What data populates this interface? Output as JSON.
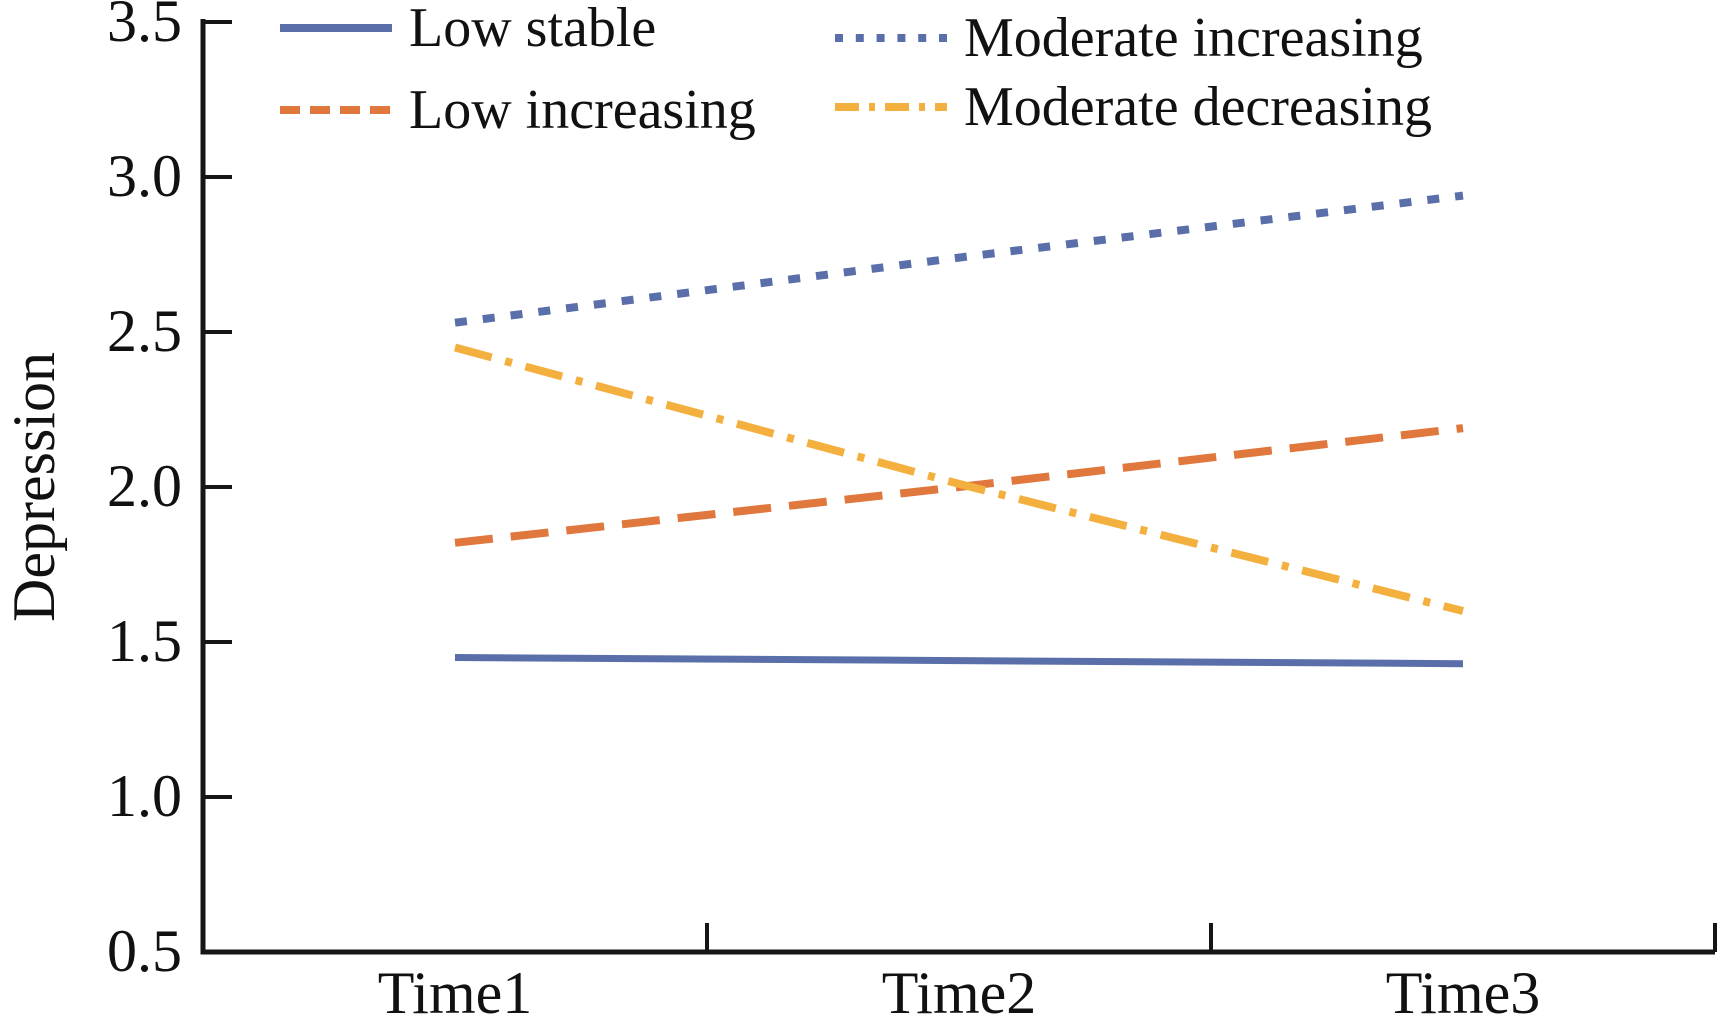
{
  "figure": {
    "background_color": "#ffffff",
    "axis_color": "#161616",
    "text_color": "#111111"
  },
  "chart_data": {
    "type": "line",
    "title": "",
    "xlabel": "",
    "ylabel": "Depression",
    "categories": [
      "Time1",
      "Time2",
      "Time3"
    ],
    "ylim": [
      0.5,
      3.5
    ],
    "ytick_step": 0.5,
    "ytick_labels": [
      "3.5",
      "3.0",
      "2.5",
      "2.0",
      "1.5",
      "1.0",
      "0.5"
    ],
    "grid": false,
    "legend_position": "top",
    "series": [
      {
        "name": "Low stable",
        "style": "solid",
        "color": "#5a6fa9",
        "values": [
          1.45,
          1.44,
          1.43
        ]
      },
      {
        "name": "Low increasing",
        "style": "dashed",
        "color": "#e0773d",
        "values": [
          1.82,
          2.0,
          2.19
        ]
      },
      {
        "name": "Moderate increasing",
        "style": "dotted",
        "color": "#5a6fa9",
        "values": [
          2.53,
          2.74,
          2.94
        ]
      },
      {
        "name": "Moderate decreasing",
        "style": "dashdot",
        "color": "#f4b03f",
        "values": [
          2.45,
          2.01,
          1.6
        ]
      }
    ]
  }
}
